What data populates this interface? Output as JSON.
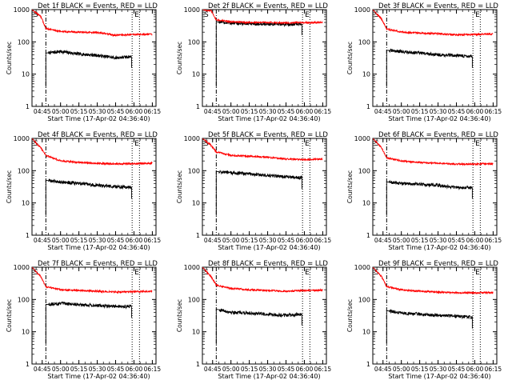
{
  "figure": {
    "axis_labels": {
      "xlabel": "Start Time (17-Apr-02 04:36:40)",
      "ylabel": "Counts/sec"
    },
    "x_ticks": [
      "04:45",
      "05:00",
      "05:15",
      "05:30",
      "05:45",
      "06:00",
      "06:15"
    ],
    "y_ticks": [
      "1",
      "10",
      "100",
      "1000"
    ],
    "colors": {
      "events": "#000000",
      "lld": "#ff0000"
    }
  },
  "chart_data": [
    {
      "type": "line",
      "title": "Det 1f BLACK = Events, RED = LLD",
      "xlim": [
        "04:36:40",
        "06:18:00"
      ],
      "ylim": [
        1,
        1000
      ],
      "yscale": "log",
      "marker_labels": [
        "S",
        "E"
      ],
      "vlines": [
        "04:48:00",
        "05:58:30",
        "06:04:30"
      ],
      "series": [
        {
          "name": "Events",
          "color": "#000000",
          "x": [
            "04:48:00",
            "05:00",
            "05:15",
            "05:30",
            "05:45",
            "05:58"
          ],
          "values": [
            45,
            50,
            42,
            38,
            32,
            35
          ]
        },
        {
          "name": "LLD",
          "color": "#ff0000",
          "x": [
            "04:36:40",
            "04:44:00",
            "04:48:00",
            "05:00",
            "05:15",
            "05:30",
            "05:45",
            "06:00",
            "06:15"
          ],
          "values": [
            1000,
            600,
            260,
            210,
            200,
            195,
            160,
            170,
            170
          ]
        }
      ]
    },
    {
      "type": "line",
      "title": "Det 2f BLACK = Events, RED = LLD",
      "xlim": [
        "04:36:40",
        "06:18:00"
      ],
      "ylim": [
        1,
        1000
      ],
      "yscale": "log",
      "marker_labels": [
        "S",
        "E"
      ],
      "vlines": [
        "04:48:00",
        "05:58:30",
        "06:04:30"
      ],
      "series": [
        {
          "name": "Events",
          "color": "#000000",
          "x": [
            "04:48:00",
            "05:00",
            "05:15",
            "05:30",
            "05:45",
            "05:58"
          ],
          "values": [
            420,
            380,
            360,
            355,
            350,
            360
          ]
        },
        {
          "name": "LLD",
          "color": "#ff0000",
          "x": [
            "04:36:40",
            "04:44:00",
            "04:48:00",
            "05:00",
            "05:15",
            "05:30",
            "05:45",
            "06:00",
            "06:15"
          ],
          "values": [
            1000,
            900,
            480,
            420,
            400,
            400,
            390,
            395,
            400
          ]
        }
      ]
    },
    {
      "type": "line",
      "title": "Det 3f BLACK = Events, RED = LLD",
      "xlim": [
        "04:36:40",
        "06:18:00"
      ],
      "ylim": [
        1,
        1000
      ],
      "yscale": "log",
      "marker_labels": [
        "S",
        "E"
      ],
      "vlines": [
        "04:48:00",
        "05:58:30",
        "06:04:30"
      ],
      "series": [
        {
          "name": "Events",
          "color": "#000000",
          "x": [
            "04:48:00",
            "05:00",
            "05:15",
            "05:30",
            "05:45",
            "05:58"
          ],
          "values": [
            55,
            50,
            45,
            40,
            38,
            35
          ]
        },
        {
          "name": "LLD",
          "color": "#ff0000",
          "x": [
            "04:36:40",
            "04:44:00",
            "04:48:00",
            "05:00",
            "05:15",
            "05:30",
            "05:45",
            "06:00",
            "06:15"
          ],
          "values": [
            1000,
            500,
            250,
            200,
            190,
            180,
            165,
            170,
            175
          ]
        }
      ]
    },
    {
      "type": "line",
      "title": "Det 4f BLACK = Events, RED = LLD",
      "xlim": [
        "04:36:40",
        "06:18:00"
      ],
      "ylim": [
        1,
        1000
      ],
      "yscale": "log",
      "marker_labels": [
        "S",
        "E"
      ],
      "vlines": [
        "04:48:00",
        "05:58:30",
        "06:04:30"
      ],
      "series": [
        {
          "name": "Events",
          "color": "#000000",
          "x": [
            "04:48:00",
            "05:00",
            "05:15",
            "05:30",
            "05:45",
            "05:58"
          ],
          "values": [
            50,
            45,
            40,
            35,
            32,
            30
          ]
        },
        {
          "name": "LLD",
          "color": "#ff0000",
          "x": [
            "04:36:40",
            "04:44:00",
            "04:48:00",
            "05:00",
            "05:15",
            "05:30",
            "05:45",
            "06:00",
            "06:15"
          ],
          "values": [
            1000,
            500,
            300,
            200,
            180,
            170,
            160,
            165,
            170
          ]
        }
      ]
    },
    {
      "type": "line",
      "title": "Det 5f BLACK = Events, RED = LLD",
      "xlim": [
        "04:36:40",
        "06:18:00"
      ],
      "ylim": [
        1,
        1000
      ],
      "yscale": "log",
      "marker_labels": [
        "S",
        "E"
      ],
      "vlines": [
        "04:48:00",
        "05:58:30",
        "06:04:30"
      ],
      "series": [
        {
          "name": "Events",
          "color": "#000000",
          "x": [
            "04:48:00",
            "05:00",
            "05:15",
            "05:30",
            "05:45",
            "05:58"
          ],
          "values": [
            95,
            85,
            80,
            70,
            65,
            60
          ]
        },
        {
          "name": "LLD",
          "color": "#ff0000",
          "x": [
            "04:36:40",
            "04:44:00",
            "04:48:00",
            "05:00",
            "05:15",
            "05:30",
            "05:45",
            "06:00",
            "06:15"
          ],
          "values": [
            1000,
            600,
            380,
            300,
            280,
            260,
            230,
            220,
            230
          ]
        }
      ]
    },
    {
      "type": "line",
      "title": "Det 6f BLACK = Events, RED = LLD",
      "xlim": [
        "04:36:40",
        "06:18:00"
      ],
      "ylim": [
        1,
        1000
      ],
      "yscale": "log",
      "marker_labels": [
        "S",
        "E"
      ],
      "vlines": [
        "04:48:00",
        "05:58:30",
        "06:04:30"
      ],
      "series": [
        {
          "name": "Events",
          "color": "#000000",
          "x": [
            "04:48:00",
            "05:00",
            "05:15",
            "05:30",
            "05:45",
            "05:58"
          ],
          "values": [
            45,
            40,
            38,
            35,
            30,
            30
          ]
        },
        {
          "name": "LLD",
          "color": "#ff0000",
          "x": [
            "04:36:40",
            "04:44:00",
            "04:48:00",
            "05:00",
            "05:15",
            "05:30",
            "05:45",
            "06:00",
            "06:15"
          ],
          "values": [
            1000,
            500,
            250,
            200,
            180,
            170,
            160,
            160,
            165
          ]
        }
      ]
    },
    {
      "type": "line",
      "title": "Det 7f BLACK = Events, RED = LLD",
      "xlim": [
        "04:36:40",
        "06:18:00"
      ],
      "ylim": [
        1,
        1000
      ],
      "yscale": "log",
      "marker_labels": [
        "S",
        "E"
      ],
      "vlines": [
        "04:48:00",
        "05:58:30",
        "06:04:30"
      ],
      "series": [
        {
          "name": "Events",
          "color": "#000000",
          "x": [
            "04:48:00",
            "05:00",
            "05:15",
            "05:30",
            "05:45",
            "05:58"
          ],
          "values": [
            70,
            75,
            70,
            65,
            60,
            60
          ]
        },
        {
          "name": "LLD",
          "color": "#ff0000",
          "x": [
            "04:36:40",
            "04:44:00",
            "04:48:00",
            "05:00",
            "05:15",
            "05:30",
            "05:45",
            "06:00",
            "06:15"
          ],
          "values": [
            1000,
            500,
            250,
            200,
            190,
            180,
            170,
            175,
            180
          ]
        }
      ]
    },
    {
      "type": "line",
      "title": "Det 8f BLACK = Events, RED = LLD",
      "xlim": [
        "04:36:40",
        "06:18:00"
      ],
      "ylim": [
        1,
        1000
      ],
      "yscale": "log",
      "marker_labels": [
        "S",
        "E"
      ],
      "vlines": [
        "04:48:00",
        "05:58:30",
        "06:04:30"
      ],
      "series": [
        {
          "name": "Events",
          "color": "#000000",
          "x": [
            "04:48:00",
            "05:00",
            "05:15",
            "05:30",
            "05:45",
            "05:58"
          ],
          "values": [
            50,
            40,
            38,
            35,
            32,
            35
          ]
        },
        {
          "name": "LLD",
          "color": "#ff0000",
          "x": [
            "04:36:40",
            "04:44:00",
            "04:48:00",
            "05:00",
            "05:15",
            "05:30",
            "05:45",
            "06:00",
            "06:15"
          ],
          "values": [
            1000,
            500,
            280,
            220,
            200,
            190,
            180,
            190,
            195
          ]
        }
      ]
    },
    {
      "type": "line",
      "title": "Det 9f BLACK = Events, RED = LLD",
      "xlim": [
        "04:36:40",
        "06:18:00"
      ],
      "ylim": [
        1,
        1000
      ],
      "yscale": "log",
      "marker_labels": [
        "S",
        "E"
      ],
      "vlines": [
        "04:48:00",
        "05:58:30",
        "06:04:30"
      ],
      "series": [
        {
          "name": "Events",
          "color": "#000000",
          "x": [
            "04:48:00",
            "05:00",
            "05:15",
            "05:30",
            "05:45",
            "05:58"
          ],
          "values": [
            45,
            38,
            35,
            32,
            30,
            28
          ]
        },
        {
          "name": "LLD",
          "color": "#ff0000",
          "x": [
            "04:36:40",
            "04:44:00",
            "04:48:00",
            "05:00",
            "05:15",
            "05:30",
            "05:45",
            "06:00",
            "06:15"
          ],
          "values": [
            1000,
            500,
            250,
            200,
            180,
            170,
            160,
            160,
            165
          ]
        }
      ]
    }
  ]
}
